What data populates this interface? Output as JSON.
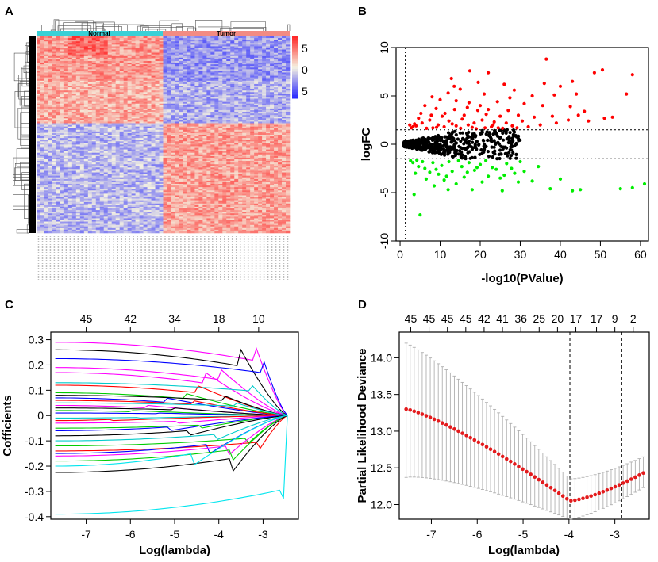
{
  "panels": {
    "a": {
      "letter": "A"
    },
    "b": {
      "letter": "B"
    },
    "c": {
      "letter": "C"
    },
    "d": {
      "letter": "D"
    }
  },
  "colors": {
    "up": "#ff0000",
    "down": "#00ee00",
    "ns": "#000000",
    "normal_bar": "#39d0d6",
    "tumor_bar": "#f28b83",
    "heat_high": "#ff2a2a",
    "heat_low": "#2a2aff",
    "dev_point": "#e31a1c",
    "errbar": "#b0b0b0"
  },
  "chart_data": [
    {
      "id": "A",
      "type": "heatmap",
      "groups": [
        "Normal",
        "Tumor"
      ],
      "legend_ticks": [
        "5",
        "0",
        "5"
      ],
      "blocks": [
        {
          "rows": "top",
          "Normal": 0.45,
          "Tumor": -0.45
        },
        {
          "rows": "middle",
          "Normal": 0.35,
          "Tumor": -0.35
        },
        {
          "rows": "bottom",
          "Normal": -0.3,
          "Tumor": 0.4
        }
      ]
    },
    {
      "id": "B",
      "type": "scatter",
      "title": "",
      "xlabel": "-log10(PValue)",
      "ylabel": "logFC",
      "xlim": [
        -1,
        62
      ],
      "ylim": [
        -10,
        10
      ],
      "xticks": [
        0,
        10,
        20,
        30,
        40,
        50,
        60
      ],
      "yticks": [
        -10,
        -5,
        0,
        5,
        10
      ],
      "hlines": [
        1.5,
        -1.5
      ],
      "vline": 1.3,
      "series": [
        {
          "name": "up",
          "points": [
            [
              36.5,
              8.8
            ],
            [
              50.5,
              7.7
            ],
            [
              58,
              7.2
            ],
            [
              17.4,
              7.6
            ],
            [
              22,
              7.4
            ],
            [
              12.8,
              6.8
            ],
            [
              19.5,
              6.4
            ],
            [
              26,
              6.2
            ],
            [
              36,
              6.3
            ],
            [
              43,
              6.5
            ],
            [
              48.5,
              7.4
            ],
            [
              40,
              6
            ],
            [
              28.5,
              5.6
            ],
            [
              12,
              5.3
            ],
            [
              15,
              5.7
            ],
            [
              21,
              5.2
            ],
            [
              33,
              5
            ],
            [
              38.5,
              5.1
            ],
            [
              44,
              5.2
            ],
            [
              56.5,
              5.2
            ],
            [
              8,
              4.9
            ],
            [
              10,
              4.6
            ],
            [
              14,
              4.5
            ],
            [
              17.2,
              4.3
            ],
            [
              24.3,
              4.4
            ],
            [
              31,
              4.2
            ],
            [
              35.6,
              4
            ],
            [
              42.5,
              3.9
            ],
            [
              6.2,
              4.0
            ],
            [
              9,
              3.7
            ],
            [
              13.6,
              3.6
            ],
            [
              19.4,
              3.5
            ],
            [
              22,
              3.6
            ],
            [
              27,
              3.5
            ],
            [
              46,
              3.4
            ],
            [
              11.2,
              3.2
            ],
            [
              16,
              3
            ],
            [
              21.5,
              3.1
            ],
            [
              25,
              2.9
            ],
            [
              29.5,
              3
            ],
            [
              33.5,
              2.8
            ],
            [
              38,
              2.9
            ],
            [
              51,
              2.7
            ],
            [
              4.6,
              2.7
            ],
            [
              7.4,
              2.5
            ],
            [
              12.2,
              2.4
            ],
            [
              15.5,
              2.6
            ],
            [
              18.5,
              2.2
            ],
            [
              20.5,
              2.5
            ],
            [
              23.5,
              2.3
            ],
            [
              26.5,
              2.2
            ],
            [
              30.5,
              2.4
            ],
            [
              42,
              2.5
            ],
            [
              3.6,
              2.1
            ],
            [
              5.5,
              2.2
            ],
            [
              9.5,
              2.0
            ],
            [
              14,
              1.9
            ],
            [
              17,
              2
            ],
            [
              22.8,
              1.8
            ],
            [
              28,
              1.9
            ],
            [
              32,
              1.8
            ],
            [
              8.2,
              1.7
            ],
            [
              11,
              1.8
            ],
            [
              13,
              2.1
            ],
            [
              19,
              1.6
            ],
            [
              24.5,
              1.7
            ],
            [
              6.6,
              1.65
            ],
            [
              3.2,
              1.8
            ],
            [
              2.4,
              2.0
            ],
            [
              35,
              2.0
            ],
            [
              39,
              2.2
            ],
            [
              44.5,
              3.0
            ],
            [
              47,
              2.4
            ],
            [
              53,
              2.8
            ],
            [
              10.5,
              2.9
            ],
            [
              16.8,
              3.8
            ],
            [
              20,
              4.0
            ],
            [
              13.5,
              6.0
            ],
            [
              27.4,
              4.8
            ],
            [
              23.2,
              2.0
            ],
            [
              5.2,
              3.2
            ],
            [
              7.8,
              3.0
            ],
            [
              2.8,
              1.7
            ],
            [
              4,
              1.9
            ],
            [
              9.1,
              1.75
            ],
            [
              15.1,
              1.65
            ],
            [
              18,
              1.75
            ],
            [
              21.2,
              1.7
            ],
            [
              25.6,
              1.65
            ],
            [
              29.2,
              1.7
            ]
          ]
        },
        {
          "name": "down",
          "points": [
            [
              5,
              -7.3
            ],
            [
              3.5,
              -5.2
            ],
            [
              12,
              -4.7
            ],
            [
              18,
              -4.7
            ],
            [
              25.5,
              -4.8
            ],
            [
              37.5,
              -4.6
            ],
            [
              45,
              -4.7
            ],
            [
              55,
              -4.6
            ],
            [
              58,
              -4.5
            ],
            [
              61,
              -4.1
            ],
            [
              43,
              -4.8
            ],
            [
              8.5,
              -4.3
            ],
            [
              14,
              -4.1
            ],
            [
              20.5,
              -3.9
            ],
            [
              29.5,
              -3.9
            ],
            [
              33,
              -3.8
            ],
            [
              6.5,
              -3.6
            ],
            [
              11,
              -3.7
            ],
            [
              16,
              -3.4
            ],
            [
              22,
              -3.3
            ],
            [
              26,
              -3.2
            ],
            [
              40,
              -3.6
            ],
            [
              3.8,
              -3.0
            ],
            [
              7.4,
              -2.9
            ],
            [
              9.6,
              -3.1
            ],
            [
              13,
              -2.8
            ],
            [
              18.6,
              -2.7
            ],
            [
              24,
              -2.6
            ],
            [
              27.8,
              -2.5
            ],
            [
              31,
              -2.8
            ],
            [
              34.5,
              -2.3
            ],
            [
              4.6,
              -2.3
            ],
            [
              6.2,
              -2.5
            ],
            [
              10.4,
              -2.2
            ],
            [
              15.4,
              -2.3
            ],
            [
              20,
              -2.1
            ],
            [
              23,
              -2.4
            ],
            [
              3.2,
              -1.9
            ],
            [
              5.6,
              -1.8
            ],
            [
              8.2,
              -1.9
            ],
            [
              12.2,
              -1.8
            ],
            [
              17.2,
              -1.9
            ],
            [
              21.4,
              -1.7
            ],
            [
              26.6,
              -2.0
            ],
            [
              30,
              -1.8
            ],
            [
              2.6,
              -1.7
            ],
            [
              4.2,
              -1.65
            ],
            [
              14.6,
              -1.7
            ],
            [
              19.2,
              -2.4
            ],
            [
              9,
              -2.6
            ],
            [
              16.8,
              -2.9
            ],
            [
              25,
              -3.5
            ],
            [
              11.6,
              -3.3
            ],
            [
              28.6,
              -3.0
            ]
          ]
        },
        {
          "name": "ns",
          "envelope": "sideways-V from x=1 to x=30"
        }
      ]
    },
    {
      "id": "C",
      "type": "line",
      "xlabel": "Log(lambda)",
      "ylabel": "Cofficients",
      "xlim": [
        -7.8,
        -2.2
      ],
      "ylim": [
        -0.41,
        0.33
      ],
      "xticks": [
        -7,
        -6,
        -5,
        -4,
        -3
      ],
      "yticks": [
        -0.4,
        -0.3,
        -0.2,
        -0.1,
        0,
        0.1,
        0.2,
        0.3
      ],
      "ytick_labels": [
        "-0.4",
        "-0.3",
        "-0.2",
        "-0.1",
        "0",
        "0.1",
        "0.2",
        "0.3"
      ],
      "top_ticks": [
        -7,
        -6,
        -5,
        -4,
        -3.1
      ],
      "top_labels": [
        "45",
        "42",
        "34",
        "18",
        "10"
      ],
      "x_start": -7.7,
      "x_end": -2.45,
      "series": [
        {
          "name": "path-1",
          "color": "#ff00ff",
          "start": 0.29,
          "knot": -3.2
        },
        {
          "name": "path-2",
          "color": "#000000",
          "start": 0.26,
          "knot": -3.5
        },
        {
          "name": "path-3",
          "color": "#0000ff",
          "start": 0.225,
          "knot": -3.0
        },
        {
          "name": "path-4",
          "color": "#ff00ff",
          "start": 0.19,
          "knot": -4.0
        },
        {
          "name": "path-5",
          "color": "#ff00ff",
          "start": 0.17,
          "knot": -4.3
        },
        {
          "name": "path-6",
          "color": "#00cccc",
          "start": 0.13,
          "knot": -3.3
        },
        {
          "name": "path-7",
          "color": "#ff0000",
          "start": 0.12,
          "knot": -4.5
        },
        {
          "name": "path-8",
          "color": "#00cc00",
          "start": 0.09,
          "knot": -4.8
        },
        {
          "name": "path-9",
          "color": "#000000",
          "start": 0.08,
          "knot": -3.9
        },
        {
          "name": "path-10",
          "color": "#0000ff",
          "start": 0.07,
          "knot": -5.2
        },
        {
          "name": "path-11",
          "color": "#ff0000",
          "start": 0.06,
          "knot": -4.6
        },
        {
          "name": "path-12",
          "color": "#00cccc",
          "start": 0.05,
          "knot": -3.6
        },
        {
          "name": "path-13",
          "color": "#ff00ff",
          "start": 0.04,
          "knot": -5.6
        },
        {
          "name": "path-14",
          "color": "#000000",
          "start": 0.03,
          "knot": -5.0
        },
        {
          "name": "path-15",
          "color": "#00cc00",
          "start": 0.02,
          "knot": -6.0
        },
        {
          "name": "path-16",
          "color": "#0000ff",
          "start": 0.01,
          "knot": -5.4
        },
        {
          "name": "path-17",
          "color": "#00cccc",
          "start": -0.01,
          "knot": -5.8
        },
        {
          "name": "path-18",
          "color": "#ff0000",
          "start": -0.02,
          "knot": -6.4
        },
        {
          "name": "path-19",
          "color": "#ff00ff",
          "start": -0.03,
          "knot": -4.9
        },
        {
          "name": "path-20",
          "color": "#00cc00",
          "start": -0.05,
          "knot": -4.4
        },
        {
          "name": "path-21",
          "color": "#0000ff",
          "start": -0.06,
          "knot": -5.1
        },
        {
          "name": "path-22",
          "color": "#000000",
          "start": -0.08,
          "knot": -4.7
        },
        {
          "name": "path-23",
          "color": "#00cccc",
          "start": -0.1,
          "knot": -4.1
        },
        {
          "name": "path-24",
          "color": "#00cc00",
          "start": -0.12,
          "knot": -3.4
        },
        {
          "name": "path-25",
          "color": "#ff0000",
          "start": -0.14,
          "knot": -3.1
        },
        {
          "name": "path-26",
          "color": "#0000ff",
          "start": -0.15,
          "knot": -4.2
        },
        {
          "name": "path-27",
          "color": "#ff00ff",
          "start": -0.16,
          "knot": -3.8
        },
        {
          "name": "path-28",
          "color": "#00cc00",
          "start": -0.18,
          "knot": -3.7
        },
        {
          "name": "path-29",
          "color": "#000000",
          "start": -0.225,
          "knot": -3.7
        },
        {
          "name": "path-30",
          "color": "#00e5ee",
          "start": -0.2,
          "knot": -4.6
        },
        {
          "name": "path-31",
          "color": "#00e5ee",
          "start": -0.39,
          "knot": -2.55
        }
      ]
    },
    {
      "id": "D",
      "type": "scatter",
      "xlabel": "Log(lambda)",
      "ylabel": "Partial Likelihood Deviance",
      "xlim": [
        -7.7,
        -2.25
      ],
      "ylim": [
        11.8,
        14.35
      ],
      "xticks": [
        -7,
        -6,
        -5,
        -4,
        -3
      ],
      "yticks": [
        12.0,
        12.5,
        13.0,
        13.5,
        14.0
      ],
      "ytick_labels": [
        "12.0",
        "12.5",
        "13.0",
        "13.5",
        "14.0"
      ],
      "top_ticks": [
        -7.45,
        -7.05,
        -6.65,
        -6.25,
        -5.85,
        -5.45,
        -5.05,
        -4.65,
        -4.25,
        -3.85,
        -3.4,
        -3.0,
        -2.6
      ],
      "top_labels": [
        "45",
        "45",
        "45",
        "45",
        "42",
        "41",
        "36",
        "25",
        "20",
        "17",
        "17",
        "9",
        "2"
      ],
      "vlines": [
        -3.98,
        -2.85
      ],
      "x_start": -7.55,
      "x_end": -2.38,
      "n_points": 60,
      "mean_start": 13.3,
      "mean_min": 12.05,
      "mean_end": 12.43,
      "min_at": -3.98
    }
  ]
}
